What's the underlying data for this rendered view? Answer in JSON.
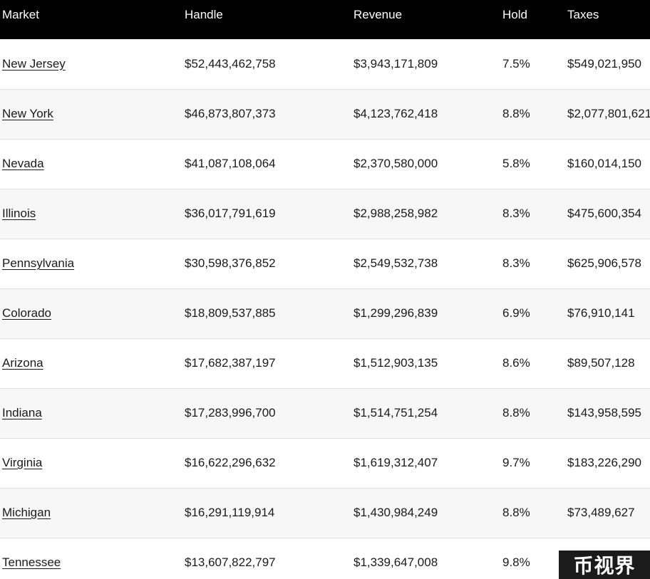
{
  "table": {
    "headers": [
      "Market",
      "Handle",
      "Revenue",
      "Hold",
      "Taxes"
    ],
    "rows": [
      {
        "market": "New Jersey",
        "handle": "$52,443,462,758",
        "revenue": "$3,943,171,809",
        "hold": "7.5%",
        "taxes": "$549,021,950"
      },
      {
        "market": "New York",
        "handle": "$46,873,807,373",
        "revenue": "$4,123,762,418",
        "hold": "8.8%",
        "taxes": "$2,077,801,621"
      },
      {
        "market": "Nevada",
        "handle": "$41,087,108,064",
        "revenue": "$2,370,580,000",
        "hold": "5.8%",
        "taxes": "$160,014,150"
      },
      {
        "market": "Illinois",
        "handle": "$36,017,791,619",
        "revenue": "$2,988,258,982",
        "hold": "8.3%",
        "taxes": "$475,600,354"
      },
      {
        "market": "Pennsylvania",
        "handle": "$30,598,376,852",
        "revenue": "$2,549,532,738",
        "hold": "8.3%",
        "taxes": "$625,906,578"
      },
      {
        "market": "Colorado",
        "handle": "$18,809,537,885",
        "revenue": "$1,299,296,839",
        "hold": "6.9%",
        "taxes": "$76,910,141"
      },
      {
        "market": "Arizona",
        "handle": "$17,682,387,197",
        "revenue": "$1,512,903,135",
        "hold": "8.6%",
        "taxes": "$89,507,128"
      },
      {
        "market": "Indiana",
        "handle": "$17,283,996,700",
        "revenue": "$1,514,751,254",
        "hold": "8.8%",
        "taxes": "$143,958,595"
      },
      {
        "market": "Virginia",
        "handle": "$16,622,296,632",
        "revenue": "$1,619,312,407",
        "hold": "9.7%",
        "taxes": "$183,226,290"
      },
      {
        "market": "Michigan",
        "handle": "$16,291,119,914",
        "revenue": "$1,430,984,249",
        "hold": "8.8%",
        "taxes": "$73,489,627"
      },
      {
        "market": "Tennessee",
        "handle": "$13,607,822,797",
        "revenue": "$1,339,647,008",
        "hold": "9.8%",
        "taxes": ""
      }
    ]
  },
  "watermark": {
    "text": "币视界"
  },
  "colors": {
    "header_bg": "#000000",
    "header_text": "#ffffff",
    "row_alt_bg": "#f7f7f7",
    "watermark_bg": "#1b1b1b"
  }
}
